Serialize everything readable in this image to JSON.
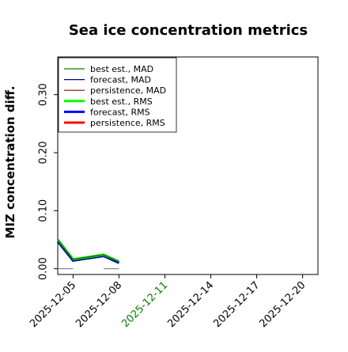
{
  "chart_data": {
    "type": "line",
    "title": "Sea ice concentration metrics",
    "ylabel": "MIZ concentration diff.",
    "xlabel": "",
    "ylim": [
      -0.01,
      0.365
    ],
    "yticks": [
      0.0,
      0.1,
      0.2,
      0.3
    ],
    "ytick_labels": [
      "0.00",
      "0.10",
      "0.20",
      "0.30"
    ],
    "xlim": [
      "2025-12-04",
      "2025-12-21"
    ],
    "xticks": [
      "2025-12-05",
      "2025-12-08",
      "2025-12-11",
      "2025-12-14",
      "2025-12-17",
      "2025-12-20"
    ],
    "xtick_labels": [
      "2025-12-05",
      "2025-12-08",
      "2025-12-11",
      "2025-12-14",
      "2025-12-17",
      "2025-12-20"
    ],
    "xtick_colors": [
      "#000000",
      "#000000",
      "#008000",
      "#000000",
      "#000000",
      "#000000"
    ],
    "grid": false,
    "legend_position": "top-left",
    "series": [
      {
        "name": "best est., MAD",
        "color": "#008000",
        "width": 1.2,
        "x": [
          "2025-12-04",
          "2025-12-05",
          "2025-12-07",
          "2025-12-08"
        ],
        "values": [
          0.05,
          0.016,
          0.024,
          0.012
        ]
      },
      {
        "name": "forecast,  MAD",
        "color": "#00008b",
        "width": 1.2,
        "x": [
          "2025-12-04",
          "2025-12-05",
          "2025-12-07",
          "2025-12-08"
        ],
        "values": [
          0.046,
          0.013,
          0.021,
          0.01
        ]
      },
      {
        "name": "persistence, MAD",
        "color": "#8b0000",
        "width": 1.2,
        "x": [
          "2025-12-04",
          "2025-12-05",
          "2025-12-07",
          "2025-12-08"
        ],
        "values": [
          0.05,
          0.016,
          0.024,
          0.012
        ]
      },
      {
        "name": "best est., RMS",
        "color": "#00ff00",
        "width": 3,
        "x": [
          "2025-12-04",
          "2025-12-05",
          "2025-12-07",
          "2025-12-08"
        ],
        "values": [
          0.05,
          0.016,
          0.024,
          0.012
        ]
      },
      {
        "name": "forecast,  RMS",
        "color": "#0000ff",
        "width": 3,
        "x": [
          "2025-12-04",
          "2025-12-05",
          "2025-12-07",
          "2025-12-08"
        ],
        "values": [
          0.047,
          0.014,
          0.022,
          0.01
        ]
      },
      {
        "name": "persistence, RMS",
        "color": "#ff0000",
        "width": 3,
        "x": [
          "2025-12-04",
          "2025-12-05",
          "2025-12-07",
          "2025-12-08"
        ],
        "values": [
          0.05,
          0.016,
          0.024,
          0.012
        ]
      }
    ],
    "baseline_segments": [
      {
        "color": "#808080",
        "x": [
          "2025-12-04",
          "2025-12-05"
        ],
        "values": [
          0.0,
          0.0
        ]
      },
      {
        "color": "#808080",
        "x": [
          "2025-12-07",
          "2025-12-08"
        ],
        "values": [
          0.0,
          0.0
        ]
      }
    ]
  }
}
